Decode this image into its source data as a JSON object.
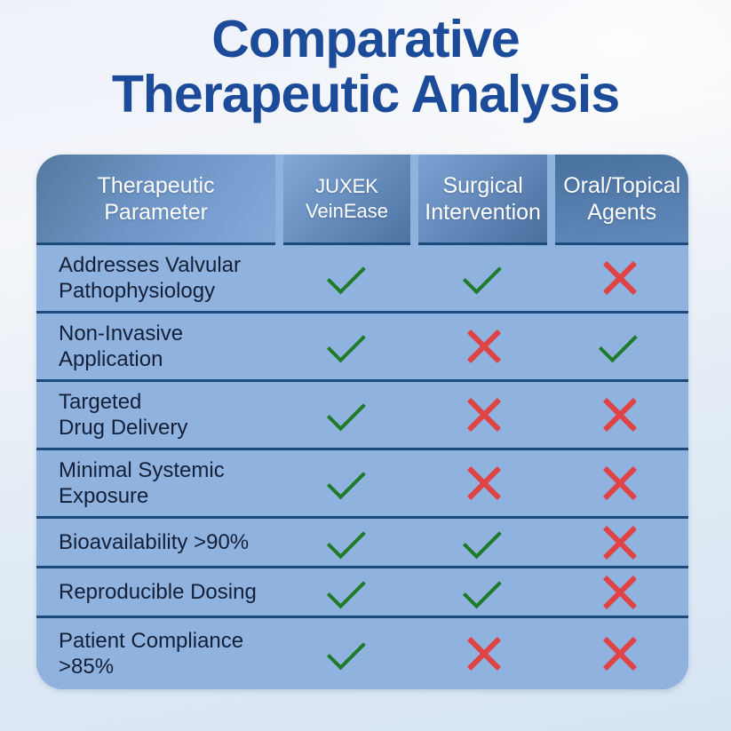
{
  "title": {
    "lines": [
      "Comparative",
      "Therapeutic Analysis"
    ]
  },
  "colors": {
    "title": "#1c4b99",
    "table_body": "#8fb2de",
    "separator": "#1d4a7c",
    "header_text": "#ffffff",
    "row_text": "#141f38",
    "check": "#1e7b2c",
    "cross": "#e04343"
  },
  "table": {
    "columns": [
      {
        "name": "Therapeutic Parameter",
        "lines": [
          "Therapeutic",
          "Parameter"
        ]
      },
      {
        "name": "JUXEK VeinEase",
        "lines": [
          "JUXEK",
          "VeinEase"
        ]
      },
      {
        "name": "Surgical Intervention",
        "lines": [
          "Surgical",
          "Intervention"
        ]
      },
      {
        "name": "Oral/Topical Agents",
        "lines": [
          "Oral/Topical",
          "Agents"
        ]
      }
    ],
    "rows": [
      {
        "parameter": "Addresses Valvular Pathophysiology",
        "parameter_lines": [
          "Addresses Valvular",
          "Pathophysiology"
        ],
        "marks": [
          "yes",
          "yes",
          "no"
        ]
      },
      {
        "parameter": "Non-Invasive Application",
        "parameter_lines": [
          "Non-Invasive",
          "Application"
        ],
        "marks": [
          "yes",
          "no",
          "yes"
        ]
      },
      {
        "parameter": "Targeted Drug Delivery",
        "parameter_lines": [
          "Targeted",
          "Drug Delivery"
        ],
        "marks": [
          "yes",
          "no",
          "no"
        ]
      },
      {
        "parameter": "Minimal Systemic Exposure",
        "parameter_lines": [
          "Minimal Systemic",
          "Exposure"
        ],
        "marks": [
          "yes",
          "no",
          "no"
        ]
      },
      {
        "parameter": "Bioavailability >90%",
        "parameter_lines": [
          "Bioavailability >90%"
        ],
        "marks": [
          "yes",
          "yes",
          "no"
        ]
      },
      {
        "parameter": "Reproducible Dosing",
        "parameter_lines": [
          "Reproducible Dosing"
        ],
        "marks": [
          "yes",
          "yes",
          "no"
        ]
      },
      {
        "parameter": "Patient Compliance >85%",
        "parameter_lines": [
          "Patient Compliance",
          ">85%"
        ],
        "marks": [
          "yes",
          "no",
          "no"
        ]
      }
    ]
  },
  "chart_data": {
    "type": "table",
    "title": "Comparative Therapeutic Analysis",
    "columns": [
      "Therapeutic Parameter",
      "JUXEK VeinEase",
      "Surgical Intervention",
      "Oral/Topical Agents"
    ],
    "rows": [
      [
        "Addresses Valvular Pathophysiology",
        "yes",
        "yes",
        "no"
      ],
      [
        "Non-Invasive Application",
        "yes",
        "no",
        "yes"
      ],
      [
        "Targeted Drug Delivery",
        "yes",
        "no",
        "no"
      ],
      [
        "Minimal Systemic Exposure",
        "yes",
        "no",
        "no"
      ],
      [
        "Bioavailability >90%",
        "yes",
        "yes",
        "no"
      ],
      [
        "Reproducible Dosing",
        "yes",
        "yes",
        "no"
      ],
      [
        "Patient Compliance >85%",
        "yes",
        "no",
        "no"
      ]
    ],
    "legend": {
      "yes": "green check mark",
      "no": "red cross mark"
    }
  }
}
